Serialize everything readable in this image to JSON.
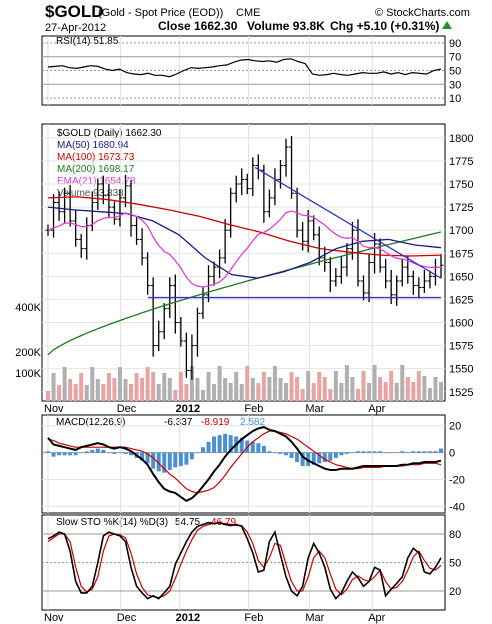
{
  "header": {
    "symbol": "$GOLD",
    "name": "(Gold - Spot Price (EOD))",
    "exchange": "CME",
    "date": "27-Apr-2012",
    "close": "Close 1662.30",
    "volume": "Volume 93.8K",
    "change": "Chg +5.10 (+0.31%)",
    "brand": "© StockCharts.com"
  },
  "colors": {
    "up_arrow": "#2e8b2e",
    "ma50": "#1a1a80",
    "ma100": "#cc0000",
    "ma200": "#1f7a1f",
    "ema21": "#e040d0",
    "trendline": "#3333cc",
    "price_bar": "#000000",
    "volume_up": "#b0b0b0",
    "volume_down": "#e8a3a3",
    "macd_line": "#000000",
    "signal_line": "#cc0000",
    "histogram": "#4a8fd0",
    "sto_k": "#000000",
    "sto_d": "#cc0000",
    "rsi_fill": "#bfbfbf"
  },
  "chart_data": [
    {
      "panel": "rsi",
      "type": "line",
      "legend": "RSI(14) 51.85",
      "y_ticks": [
        90,
        70,
        50,
        30,
        10
      ],
      "ylim": [
        0,
        100
      ],
      "values": [
        55,
        56,
        57,
        54,
        53,
        55,
        57,
        56,
        52,
        50,
        52,
        47,
        45,
        44,
        46,
        43,
        43,
        41,
        45,
        50,
        54,
        53,
        54,
        55,
        57,
        58,
        62,
        65,
        66,
        64,
        63,
        64,
        62,
        66,
        67,
        63,
        60,
        45,
        43,
        44,
        46,
        44,
        43,
        45,
        47,
        46,
        46,
        48,
        45,
        47,
        44,
        47,
        46,
        45,
        50,
        52
      ]
    },
    {
      "panel": "price",
      "type": "ohlc",
      "legend": {
        "title": "$GOLD (Daily) 1662.30",
        "ma50": "MA(50) 1680.94",
        "ma100": "MA(100) 1673.73",
        "ma200": "MA(200) 1698.17",
        "ema21": "EMA(21) 1654.78",
        "volume": "Volume 93,833"
      },
      "x_labels": [
        "Nov",
        "Dec",
        "2012",
        "Feb",
        "Mar",
        "Apr"
      ],
      "y_ticks": [
        1800,
        1775,
        1750,
        1725,
        1700,
        1675,
        1650,
        1625,
        1600,
        1575,
        1550,
        1525
      ],
      "ylim": [
        1515,
        1815
      ],
      "volume_ticks": [
        "400K",
        "200K",
        "100K"
      ],
      "close": [
        1700,
        1730,
        1720,
        1740,
        1710,
        1690,
        1680,
        1705,
        1730,
        1750,
        1738,
        1725,
        1712,
        1735,
        1748,
        1705,
        1690,
        1670,
        1640,
        1575,
        1590,
        1615,
        1640,
        1600,
        1580,
        1548,
        1575,
        1610,
        1630,
        1650,
        1660,
        1670,
        1700,
        1740,
        1750,
        1755,
        1745,
        1770,
        1765,
        1720,
        1735,
        1755,
        1770,
        1790,
        1740,
        1700,
        1688,
        1710,
        1695,
        1670,
        1665,
        1645,
        1650,
        1660,
        1680,
        1700,
        1645,
        1632,
        1665,
        1685,
        1660,
        1645,
        1630,
        1645,
        1660,
        1650,
        1640,
        1638,
        1645,
        1650,
        1660,
        1662
      ]
    },
    {
      "panel": "macd",
      "type": "line",
      "legend": {
        "name": "MACD(12,26,9)",
        "macd": "-6.337",
        "signal": "-8.919",
        "hist": "2.582"
      },
      "y_ticks": [
        20,
        0,
        -20,
        -40
      ],
      "ylim": [
        -45,
        28
      ],
      "macd": [
        11,
        6,
        5,
        4,
        3,
        2,
        4,
        5,
        6,
        7,
        6,
        4,
        3,
        4,
        3,
        1,
        -2,
        -5,
        -9,
        -16,
        -22,
        -27,
        -29,
        -30,
        -33,
        -36,
        -34,
        -30,
        -25,
        -20,
        -14,
        -9,
        -3,
        2,
        6,
        10,
        13,
        16,
        18,
        19,
        17,
        16,
        14,
        12,
        8,
        3,
        -3,
        -6,
        -8,
        -10,
        -12,
        -13,
        -13,
        -12,
        -12,
        -12,
        -11,
        -10,
        -10,
        -10,
        -10,
        -10,
        -10,
        -10,
        -9,
        -9,
        -8,
        -8,
        -7,
        -7,
        -7,
        -6
      ],
      "signal": [
        10,
        9,
        7,
        6,
        5,
        4,
        4,
        4,
        4,
        4,
        4,
        4,
        4,
        4,
        4,
        3,
        2,
        1,
        -1,
        -4,
        -8,
        -12,
        -16,
        -19,
        -23,
        -27,
        -29,
        -30,
        -29,
        -28,
        -26,
        -22,
        -17,
        -11,
        -6,
        -1,
        4,
        8,
        11,
        14,
        16,
        16,
        15,
        14,
        12,
        10,
        7,
        4,
        1,
        -2,
        -5,
        -7,
        -9,
        -10,
        -11,
        -12,
        -12,
        -11,
        -11,
        -11,
        -11,
        -10,
        -10,
        -10,
        -10,
        -9,
        -9,
        -9,
        -8,
        -8,
        -8,
        -9
      ]
    },
    {
      "panel": "stochastic",
      "type": "line",
      "legend": {
        "name": "Slow STO %K(14) %D(3)",
        "k": "54.75",
        "d": "46.79"
      },
      "y_ticks": [
        80,
        50,
        20
      ],
      "ylim": [
        0,
        100
      ],
      "k": [
        75,
        78,
        82,
        80,
        62,
        30,
        18,
        18,
        25,
        50,
        78,
        82,
        80,
        78,
        72,
        45,
        25,
        18,
        12,
        15,
        12,
        18,
        25,
        48,
        60,
        72,
        82,
        88,
        90,
        92,
        91,
        92,
        90,
        89,
        90,
        88,
        75,
        60,
        40,
        42,
        72,
        82,
        58,
        35,
        20,
        15,
        25,
        55,
        70,
        60,
        45,
        22,
        12,
        18,
        30,
        40,
        34,
        25,
        30,
        45,
        42,
        15,
        22,
        28,
        35,
        55,
        65,
        60,
        40,
        38,
        45,
        55
      ],
      "d": [
        72,
        76,
        80,
        80,
        72,
        45,
        25,
        19,
        22,
        35,
        62,
        78,
        80,
        79,
        76,
        60,
        38,
        24,
        16,
        14,
        13,
        15,
        20,
        33,
        48,
        62,
        74,
        84,
        88,
        90,
        91,
        91,
        91,
        90,
        89,
        89,
        82,
        70,
        52,
        45,
        55,
        70,
        68,
        48,
        30,
        20,
        20,
        35,
        55,
        62,
        55,
        38,
        22,
        16,
        22,
        32,
        36,
        32,
        30,
        35,
        42,
        30,
        22,
        24,
        30,
        42,
        56,
        62,
        52,
        44,
        42,
        47
      ]
    }
  ]
}
